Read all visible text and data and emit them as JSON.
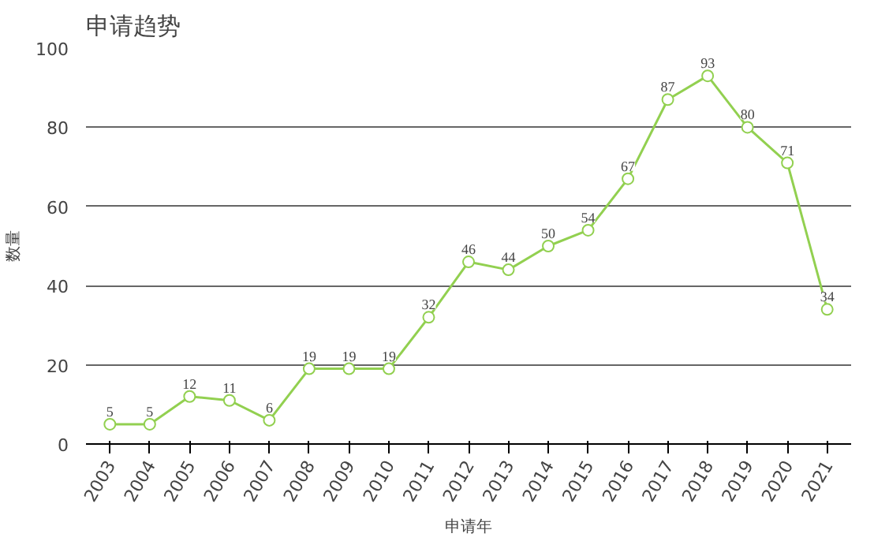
{
  "chart_data": {
    "type": "line",
    "title": "申请趋势",
    "xlabel": "申请年",
    "ylabel": "数量",
    "categories": [
      "2003",
      "2004",
      "2005",
      "2006",
      "2007",
      "2008",
      "2009",
      "2010",
      "2011",
      "2012",
      "2013",
      "2014",
      "2015",
      "2016",
      "2017",
      "2018",
      "2019",
      "2020",
      "2021"
    ],
    "series": [
      {
        "color": "#92d050",
        "values": [
          5,
          5,
          12,
          11,
          6,
          19,
          19,
          19,
          32,
          46,
          44,
          50,
          54,
          67,
          87,
          93,
          80,
          71,
          34
        ]
      }
    ],
    "ylim": [
      0,
      100
    ],
    "yticks": [
      0,
      20,
      40,
      60,
      80,
      100
    ],
    "grid": "y",
    "marker": "circle",
    "line_style": "solid",
    "data_labels": true
  }
}
